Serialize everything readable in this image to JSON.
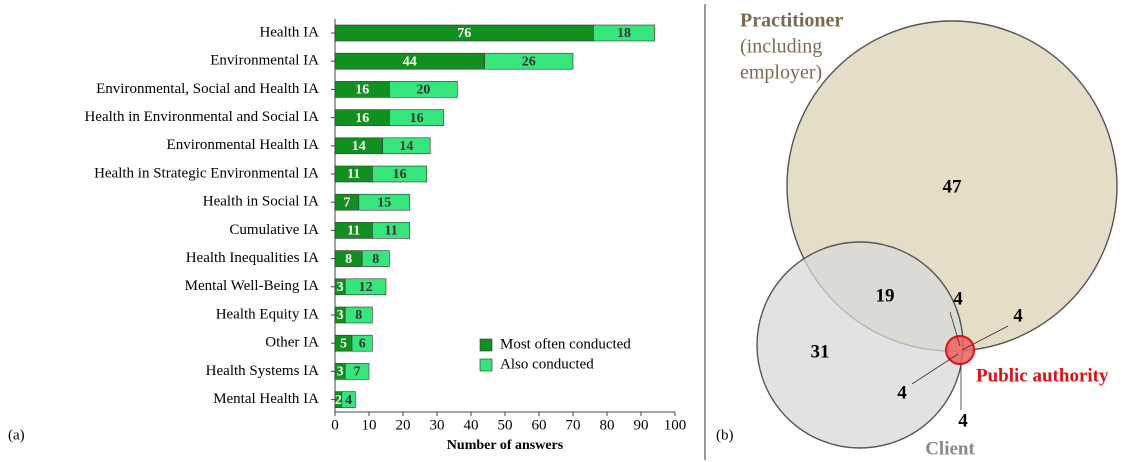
{
  "chart_data": [
    {
      "type": "bar",
      "orientation": "horizontal",
      "stacked": true,
      "panel_label": "(a)",
      "xlabel": "Number of answers",
      "categories": [
        "Health IA",
        "Environmental IA",
        "Environmental, Social and Health IA",
        "Health in Environmental and Social IA",
        "Environmental Health IA",
        "Health in Strategic Environmental IA",
        "Health in Social IA",
        "Cumulative IA",
        "Health Inequalities IA",
        "Mental Well-Being IA",
        "Health Equity IA",
        "Other IA",
        "Health Systems IA",
        "Mental Health IA"
      ],
      "series": [
        {
          "name": "Most often conducted",
          "color": "#12901f",
          "values": [
            76,
            44,
            16,
            16,
            14,
            11,
            7,
            11,
            8,
            3,
            3,
            5,
            3,
            2
          ]
        },
        {
          "name": "Also conducted",
          "color": "#36e67c",
          "values": [
            18,
            26,
            20,
            16,
            14,
            16,
            15,
            11,
            8,
            12,
            8,
            6,
            7,
            4
          ]
        }
      ],
      "xlim": [
        0,
        100
      ],
      "xticks": [
        0,
        10,
        20,
        30,
        40,
        50,
        60,
        70,
        80,
        90,
        100
      ],
      "legend": "lower right"
    },
    {
      "type": "venn",
      "panel_label": "(b)",
      "sets": [
        {
          "name": "Practitioner",
          "extra_lines": [
            "(including",
            "employer)"
          ],
          "color": "#7a6a4f",
          "fill": "#ddd2b6"
        },
        {
          "name": "Client",
          "color": "#8a8a8a",
          "fill": "#d8d8d8"
        },
        {
          "name": "Public authority",
          "color": "#e01010",
          "fill": "#f06060"
        }
      ],
      "values": [
        47,
        19,
        31,
        4,
        4,
        4,
        4
      ]
    }
  ]
}
